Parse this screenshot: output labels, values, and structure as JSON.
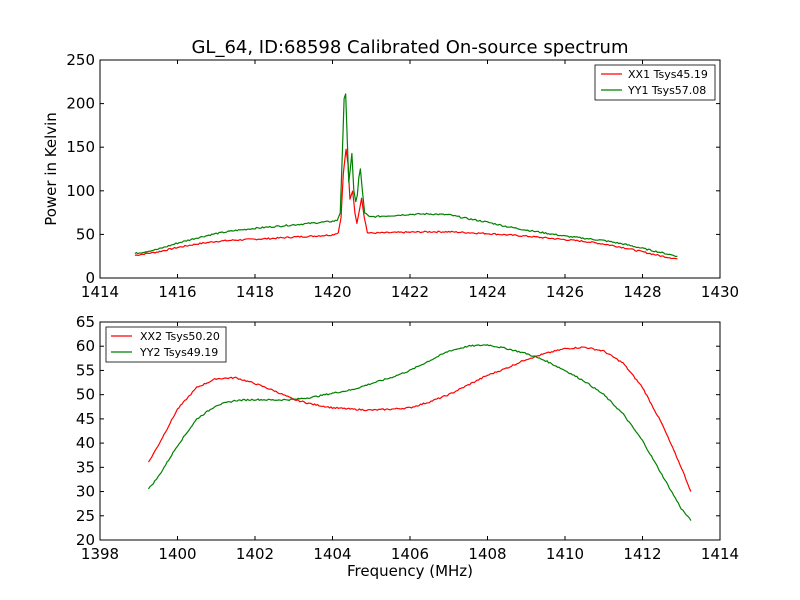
{
  "figure": {
    "title": "GL_64, ID:68598 Calibrated On-source spectrum",
    "xlabel": "Frequency (MHz)"
  },
  "colors": {
    "XX": "#ff0000",
    "YY": "#008000"
  },
  "chart_data": [
    {
      "type": "line",
      "ylabel": "Power in Kelvin",
      "xlim": [
        1414,
        1430
      ],
      "ylim": [
        0,
        250
      ],
      "xticks": [
        "1414",
        "1416",
        "1418",
        "1420",
        "1422",
        "1424",
        "1426",
        "1428",
        "1430"
      ],
      "yticks": [
        "0",
        "50",
        "100",
        "150",
        "200",
        "250"
      ],
      "xtick_values": [
        1414,
        1416,
        1418,
        1420,
        1422,
        1424,
        1426,
        1428,
        1430
      ],
      "ytick_values": [
        0,
        50,
        100,
        150,
        200,
        250
      ],
      "legend_position": "top-right",
      "series": [
        {
          "name": "XX1 Tsys45.19",
          "color": "#ff0000",
          "points": [
            [
              1414.9,
              26
            ],
            [
              1415.5,
              30
            ],
            [
              1416,
              35
            ],
            [
              1416.5,
              39
            ],
            [
              1417,
              42
            ],
            [
              1417.5,
              43.5
            ],
            [
              1418,
              44.5
            ],
            [
              1418.5,
              45.5
            ],
            [
              1419,
              47
            ],
            [
              1419.5,
              48
            ],
            [
              1420,
              49.5
            ],
            [
              1420.15,
              52
            ],
            [
              1420.22,
              70
            ],
            [
              1420.28,
              120
            ],
            [
              1420.35,
              148
            ],
            [
              1420.4,
              130
            ],
            [
              1420.45,
              90
            ],
            [
              1420.52,
              100
            ],
            [
              1420.58,
              75
            ],
            [
              1420.63,
              62
            ],
            [
              1420.68,
              75
            ],
            [
              1420.75,
              92
            ],
            [
              1420.82,
              70
            ],
            [
              1420.9,
              52
            ],
            [
              1421,
              51.5
            ],
            [
              1421.5,
              52
            ],
            [
              1422,
              52.5
            ],
            [
              1422.5,
              53
            ],
            [
              1423,
              53
            ],
            [
              1423.5,
              52
            ],
            [
              1424,
              51
            ],
            [
              1424.5,
              49.5
            ],
            [
              1425,
              48
            ],
            [
              1425.5,
              46
            ],
            [
              1426,
              44
            ],
            [
              1426.5,
              42
            ],
            [
              1427,
              39
            ],
            [
              1427.5,
              35
            ],
            [
              1428,
              30
            ],
            [
              1428.5,
              25
            ],
            [
              1428.9,
              22
            ]
          ]
        },
        {
          "name": "YY1 Tsys57.08",
          "color": "#008000",
          "points": [
            [
              1414.9,
              28
            ],
            [
              1415.5,
              33
            ],
            [
              1416,
              40
            ],
            [
              1416.5,
              46
            ],
            [
              1417,
              51
            ],
            [
              1417.5,
              54.5
            ],
            [
              1418,
              57
            ],
            [
              1418.5,
              59
            ],
            [
              1419,
              61
            ],
            [
              1419.5,
              63
            ],
            [
              1420,
              65
            ],
            [
              1420.12,
              66
            ],
            [
              1420.2,
              75
            ],
            [
              1420.26,
              150
            ],
            [
              1420.3,
              205
            ],
            [
              1420.34,
              212
            ],
            [
              1420.38,
              160
            ],
            [
              1420.42,
              110
            ],
            [
              1420.46,
              125
            ],
            [
              1420.5,
              142
            ],
            [
              1420.55,
              100
            ],
            [
              1420.6,
              88
            ],
            [
              1420.64,
              95
            ],
            [
              1420.68,
              115
            ],
            [
              1420.72,
              125
            ],
            [
              1420.77,
              100
            ],
            [
              1420.83,
              75
            ],
            [
              1420.95,
              70
            ],
            [
              1421.5,
              71.5
            ],
            [
              1422,
              73
            ],
            [
              1422.5,
              73.5
            ],
            [
              1423,
              72.5
            ],
            [
              1423.5,
              68
            ],
            [
              1424,
              64
            ],
            [
              1424.5,
              59
            ],
            [
              1425,
              55
            ],
            [
              1425.5,
              51.5
            ],
            [
              1426,
              48
            ],
            [
              1426.5,
              45.5
            ],
            [
              1427,
              43
            ],
            [
              1427.5,
              39
            ],
            [
              1428,
              34
            ],
            [
              1428.5,
              29
            ],
            [
              1428.9,
              25
            ]
          ]
        }
      ]
    },
    {
      "type": "line",
      "ylabel": "",
      "xlim": [
        1398,
        1414
      ],
      "ylim": [
        20,
        65
      ],
      "xticks": [
        "1398",
        "1400",
        "1402",
        "1404",
        "1406",
        "1408",
        "1410",
        "1412",
        "1414"
      ],
      "yticks": [
        "20",
        "25",
        "30",
        "35",
        "40",
        "45",
        "50",
        "55",
        "60",
        "65"
      ],
      "xtick_values": [
        1398,
        1400,
        1402,
        1404,
        1406,
        1408,
        1410,
        1412,
        1414
      ],
      "ytick_values": [
        20,
        25,
        30,
        35,
        40,
        45,
        50,
        55,
        60,
        65
      ],
      "legend_position": "top-left",
      "series": [
        {
          "name": "XX2 Tsys50.20",
          "color": "#ff0000",
          "points": [
            [
              1399.25,
              36
            ],
            [
              1399.5,
              39.5
            ],
            [
              1400,
              47
            ],
            [
              1400.5,
              51.5
            ],
            [
              1401,
              53.3
            ],
            [
              1401.5,
              53.5
            ],
            [
              1402,
              52.3
            ],
            [
              1402.5,
              50.8
            ],
            [
              1403,
              49
            ],
            [
              1403.5,
              48
            ],
            [
              1404,
              47.3
            ],
            [
              1404.5,
              47
            ],
            [
              1405,
              46.8
            ],
            [
              1405.5,
              47
            ],
            [
              1406,
              47.3
            ],
            [
              1406.5,
              48.5
            ],
            [
              1407,
              50
            ],
            [
              1407.5,
              52
            ],
            [
              1408,
              54
            ],
            [
              1408.5,
              55.5
            ],
            [
              1409,
              57.3
            ],
            [
              1409.5,
              58.5
            ],
            [
              1410,
              59.5
            ],
            [
              1410.5,
              59.8
            ],
            [
              1411,
              59
            ],
            [
              1411.5,
              56.5
            ],
            [
              1412,
              51.5
            ],
            [
              1412.5,
              44
            ],
            [
              1413,
              35
            ],
            [
              1413.25,
              30
            ]
          ]
        },
        {
          "name": "YY2 Tsys49.19",
          "color": "#008000",
          "points": [
            [
              1399.25,
              30.5
            ],
            [
              1399.5,
              33
            ],
            [
              1400,
              39.5
            ],
            [
              1400.5,
              45
            ],
            [
              1401,
              47.8
            ],
            [
              1401.5,
              48.8
            ],
            [
              1402,
              49
            ],
            [
              1402.5,
              48.9
            ],
            [
              1403,
              49
            ],
            [
              1403.5,
              49.5
            ],
            [
              1404,
              50.3
            ],
            [
              1404.5,
              51
            ],
            [
              1405,
              52.3
            ],
            [
              1405.5,
              53.5
            ],
            [
              1406,
              55
            ],
            [
              1406.5,
              57
            ],
            [
              1407,
              59
            ],
            [
              1407.5,
              60
            ],
            [
              1408,
              60.3
            ],
            [
              1408.5,
              59.5
            ],
            [
              1409,
              58.5
            ],
            [
              1409.5,
              57
            ],
            [
              1410,
              55
            ],
            [
              1410.5,
              52.8
            ],
            [
              1411,
              50
            ],
            [
              1411.5,
              46
            ],
            [
              1412,
              40.5
            ],
            [
              1412.5,
              33.5
            ],
            [
              1413,
              26.5
            ],
            [
              1413.25,
              24
            ]
          ]
        }
      ]
    }
  ]
}
